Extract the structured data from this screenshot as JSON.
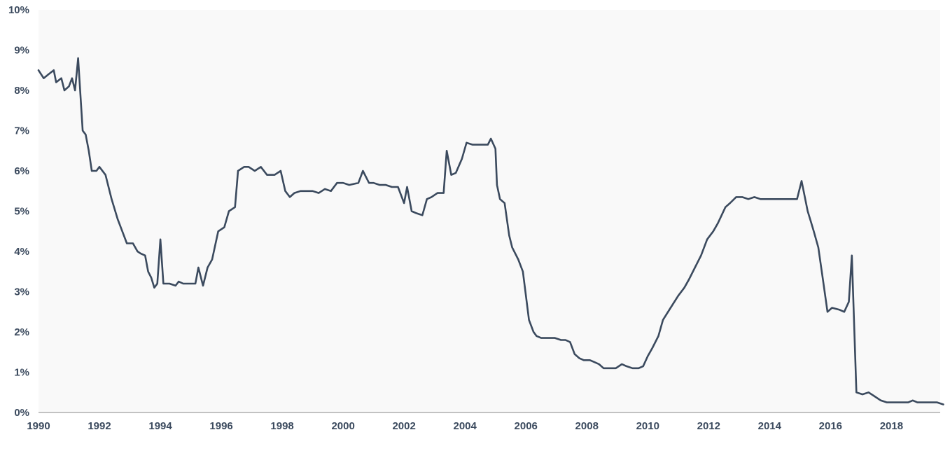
{
  "chart_data": {
    "type": "line",
    "title": "",
    "xlabel": "",
    "ylabel": "",
    "xlim": [
      1990,
      2019.6
    ],
    "ylim": [
      0,
      10
    ],
    "grid": false,
    "legend": "none",
    "x_ticks": [
      1990,
      1992,
      1994,
      1996,
      1998,
      2000,
      2002,
      2004,
      2006,
      2008,
      2010,
      2012,
      2014,
      2016,
      2018
    ],
    "y_ticks": [
      0,
      1,
      2,
      3,
      4,
      5,
      6,
      7,
      8,
      9,
      10
    ],
    "y_tick_labels": [
      "0%",
      "1%",
      "2%",
      "3%",
      "4%",
      "5%",
      "6%",
      "7%",
      "8%",
      "9%",
      "10%"
    ],
    "colors": {
      "actual": "#3b4a5e",
      "forecast": "#b3aeae",
      "background": "#f9f9f9",
      "tick_text": "#3b4a5e"
    },
    "series": [
      {
        "role": "actual",
        "points": [
          [
            1990.0,
            8.5
          ],
          [
            1990.17,
            8.3
          ],
          [
            1990.33,
            8.4
          ],
          [
            1990.5,
            8.5
          ],
          [
            1990.58,
            8.2
          ],
          [
            1990.75,
            8.3
          ],
          [
            1990.85,
            8.0
          ],
          [
            1991.0,
            8.1
          ],
          [
            1991.1,
            8.3
          ],
          [
            1991.2,
            8.0
          ],
          [
            1991.3,
            8.8
          ],
          [
            1991.45,
            7.0
          ],
          [
            1991.55,
            6.9
          ],
          [
            1991.65,
            6.5
          ],
          [
            1991.75,
            6.0
          ],
          [
            1991.9,
            6.0
          ],
          [
            1992.0,
            6.1
          ],
          [
            1992.2,
            5.9
          ],
          [
            1992.4,
            5.3
          ],
          [
            1992.6,
            4.8
          ],
          [
            1992.75,
            4.5
          ],
          [
            1992.9,
            4.2
          ],
          [
            1993.1,
            4.2
          ],
          [
            1993.25,
            4.0
          ],
          [
            1993.35,
            3.95
          ],
          [
            1993.5,
            3.9
          ],
          [
            1993.6,
            3.5
          ],
          [
            1993.7,
            3.35
          ],
          [
            1993.8,
            3.1
          ],
          [
            1993.9,
            3.2
          ],
          [
            1994.0,
            4.3
          ],
          [
            1994.1,
            3.2
          ],
          [
            1994.3,
            3.2
          ],
          [
            1994.5,
            3.15
          ],
          [
            1994.6,
            3.25
          ],
          [
            1994.75,
            3.2
          ],
          [
            1995.0,
            3.2
          ],
          [
            1995.15,
            3.2
          ],
          [
            1995.25,
            3.6
          ],
          [
            1995.4,
            3.15
          ],
          [
            1995.55,
            3.6
          ],
          [
            1995.7,
            3.8
          ],
          [
            1995.9,
            4.5
          ],
          [
            1996.1,
            4.6
          ],
          [
            1996.25,
            5.0
          ],
          [
            1996.45,
            5.1
          ],
          [
            1996.55,
            6.0
          ],
          [
            1996.75,
            6.1
          ],
          [
            1996.9,
            6.1
          ],
          [
            1997.1,
            6.0
          ],
          [
            1997.3,
            6.1
          ],
          [
            1997.5,
            5.9
          ],
          [
            1997.75,
            5.9
          ],
          [
            1997.95,
            6.0
          ],
          [
            1998.1,
            5.5
          ],
          [
            1998.25,
            5.35
          ],
          [
            1998.4,
            5.45
          ],
          [
            1998.6,
            5.5
          ],
          [
            1998.75,
            5.5
          ],
          [
            1999.0,
            5.5
          ],
          [
            1999.2,
            5.45
          ],
          [
            1999.4,
            5.55
          ],
          [
            1999.6,
            5.5
          ],
          [
            1999.8,
            5.7
          ],
          [
            2000.0,
            5.7
          ],
          [
            2000.2,
            5.65
          ],
          [
            2000.5,
            5.7
          ],
          [
            2000.65,
            6.0
          ],
          [
            2000.85,
            5.7
          ],
          [
            2001.0,
            5.7
          ],
          [
            2001.2,
            5.65
          ],
          [
            2001.4,
            5.65
          ],
          [
            2001.6,
            5.6
          ],
          [
            2001.8,
            5.6
          ],
          [
            2002.0,
            5.2
          ],
          [
            2002.1,
            5.6
          ],
          [
            2002.25,
            5.0
          ],
          [
            2002.4,
            4.95
          ],
          [
            2002.6,
            4.9
          ],
          [
            2002.75,
            5.3
          ],
          [
            2002.9,
            5.35
          ],
          [
            2003.1,
            5.45
          ],
          [
            2003.3,
            5.45
          ],
          [
            2003.4,
            6.5
          ],
          [
            2003.55,
            5.9
          ],
          [
            2003.7,
            5.95
          ],
          [
            2003.9,
            6.3
          ],
          [
            2004.05,
            6.7
          ],
          [
            2004.25,
            6.65
          ],
          [
            2004.5,
            6.65
          ],
          [
            2004.75,
            6.65
          ],
          [
            2004.85,
            6.8
          ],
          [
            2005.0,
            6.55
          ],
          [
            2005.05,
            5.65
          ],
          [
            2005.15,
            5.3
          ],
          [
            2005.3,
            5.2
          ],
          [
            2005.45,
            4.4
          ],
          [
            2005.55,
            4.1
          ],
          [
            2005.75,
            3.8
          ],
          [
            2005.9,
            3.5
          ],
          [
            2006.1,
            2.3
          ],
          [
            2006.25,
            2.0
          ],
          [
            2006.35,
            1.9
          ],
          [
            2006.5,
            1.85
          ],
          [
            2006.75,
            1.85
          ],
          [
            2006.95,
            1.85
          ],
          [
            2007.15,
            1.8
          ],
          [
            2007.3,
            1.8
          ],
          [
            2007.45,
            1.75
          ],
          [
            2007.6,
            1.45
          ],
          [
            2007.75,
            1.35
          ],
          [
            2007.9,
            1.3
          ],
          [
            2008.1,
            1.3
          ],
          [
            2008.25,
            1.25
          ],
          [
            2008.4,
            1.2
          ],
          [
            2008.55,
            1.1
          ],
          [
            2008.75,
            1.1
          ],
          [
            2008.95,
            1.1
          ],
          [
            2009.15,
            1.2
          ],
          [
            2009.3,
            1.15
          ],
          [
            2009.5,
            1.1
          ],
          [
            2009.7,
            1.1
          ],
          [
            2009.85,
            1.15
          ],
          [
            2010.0,
            1.4
          ],
          [
            2010.15,
            1.6
          ],
          [
            2010.35,
            1.9
          ],
          [
            2010.5,
            2.3
          ],
          [
            2010.75,
            2.6
          ],
          [
            2011.0,
            2.9
          ],
          [
            2011.2,
            3.1
          ],
          [
            2011.35,
            3.3
          ],
          [
            2011.55,
            3.6
          ],
          [
            2011.75,
            3.9
          ],
          [
            2011.95,
            4.3
          ],
          [
            2012.15,
            4.5
          ],
          [
            2012.3,
            4.7
          ],
          [
            2012.55,
            5.1
          ],
          [
            2012.7,
            5.2
          ],
          [
            2012.9,
            5.35
          ],
          [
            2013.1,
            5.35
          ],
          [
            2013.3,
            5.3
          ],
          [
            2013.5,
            5.35
          ],
          [
            2013.7,
            5.3
          ],
          [
            2013.9,
            5.3
          ],
          [
            2014.1,
            5.3
          ],
          [
            2014.35,
            5.3
          ],
          [
            2014.6,
            5.3
          ],
          [
            2014.9,
            5.3
          ],
          [
            2015.05,
            5.75
          ],
          [
            2015.25,
            5.0
          ],
          [
            2015.35,
            4.75
          ],
          [
            2015.45,
            4.5
          ],
          [
            2015.6,
            4.1
          ],
          [
            2015.75,
            3.3
          ],
          [
            2015.9,
            2.5
          ],
          [
            2016.05,
            2.6
          ],
          [
            2016.3,
            2.55
          ],
          [
            2016.45,
            2.5
          ],
          [
            2016.6,
            2.75
          ],
          [
            2016.7,
            3.9
          ],
          [
            2016.85,
            0.5
          ],
          [
            2017.05,
            0.45
          ],
          [
            2017.25,
            0.5
          ],
          [
            2017.45,
            0.4
          ],
          [
            2017.65,
            0.3
          ],
          [
            2017.85,
            0.25
          ],
          [
            2018.05,
            0.25
          ],
          [
            2018.3,
            0.25
          ],
          [
            2018.55,
            0.25
          ],
          [
            2018.7,
            0.3
          ],
          [
            2018.85,
            0.25
          ],
          [
            2019.0,
            0.25
          ],
          [
            2019.25,
            0.25
          ],
          [
            2019.5,
            0.25
          ],
          [
            2019.7,
            0.2
          ]
        ]
      }
    ]
  }
}
